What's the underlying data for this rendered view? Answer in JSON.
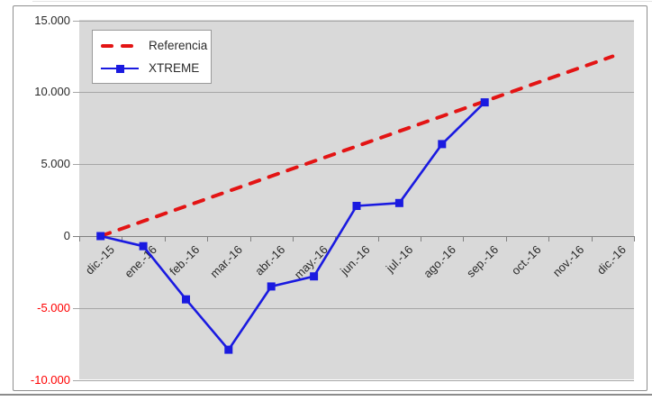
{
  "colors": {
    "plot_bg": "#d9d9d9",
    "gridline": "#a6a6a6",
    "axis_line": "#808080",
    "chart_border": "#8e8e8e",
    "text": "#2a2a2a",
    "negative_tick": "#ff0000",
    "referencia": "#e31414",
    "xtreme": "#1a1ae0",
    "legend_border": "#9a9a9a"
  },
  "legend": {
    "items": [
      {
        "label": "Referencia"
      },
      {
        "label": "XTREME"
      }
    ]
  },
  "chart_data": {
    "type": "line",
    "title": "",
    "xlabel": "",
    "ylabel": "",
    "categories": [
      "dic.-15",
      "ene.-16",
      "feb.-16",
      "mar.-16",
      "abr.-16",
      "may.-16",
      "jun.-16",
      "jul.-16",
      "ago.-16",
      "sep.-16",
      "oct.-16",
      "nov.-16",
      "dic.-16"
    ],
    "series": [
      {
        "name": "Referencia",
        "color": "#e31414",
        "style": "dashed",
        "marker": "none",
        "values": [
          0,
          1042,
          2083,
          3125,
          4167,
          5208,
          6250,
          7292,
          8333,
          9375,
          10417,
          11458,
          12500
        ]
      },
      {
        "name": "XTREME",
        "color": "#1a1ae0",
        "style": "solid",
        "marker": "square",
        "values": [
          0,
          -700,
          -4400,
          -7900,
          -3500,
          -2800,
          2100,
          2300,
          6400,
          9300,
          null,
          null,
          null
        ]
      }
    ],
    "ylim": [
      -10000,
      15000
    ],
    "y_ticks": [
      {
        "value": 15000,
        "label": "15.000"
      },
      {
        "value": 10000,
        "label": "10.000"
      },
      {
        "value": 5000,
        "label": "5.000"
      },
      {
        "value": 0,
        "label": "0"
      },
      {
        "value": -5000,
        "label": "-5.000"
      },
      {
        "value": -10000,
        "label": "-10.000"
      }
    ],
    "grid": true,
    "legend_position": "top-left-inside",
    "x_label_rotation": 45,
    "axis_label_negative_color": "#ff0000",
    "plot_background": "#d9d9d9"
  }
}
